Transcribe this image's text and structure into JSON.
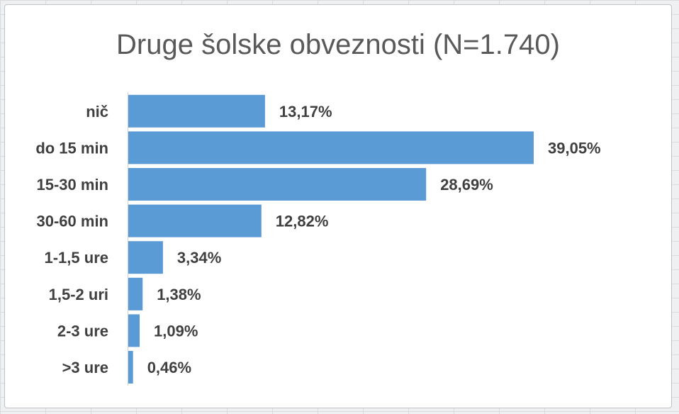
{
  "chart_data": {
    "type": "bar",
    "orientation": "horizontal",
    "title": "Druge šolske obveznosti (N=1.740)",
    "categories": [
      "nič",
      "do 15 min",
      "15-30 min",
      "30-60 min",
      "1-1,5 ure",
      "1,5-2 uri",
      "2-3 ure",
      ">3 ure"
    ],
    "values": [
      13.17,
      39.05,
      28.69,
      12.82,
      3.34,
      1.38,
      1.09,
      0.46
    ],
    "value_labels": [
      "13,17%",
      "39,05%",
      "28,69%",
      "12,82%",
      "3,34%",
      "1,38%",
      "1,09%",
      "0,46%"
    ],
    "xlim": [
      0,
      40
    ],
    "grid": false,
    "legend": "none",
    "bar_color": "#5b9bd5"
  }
}
